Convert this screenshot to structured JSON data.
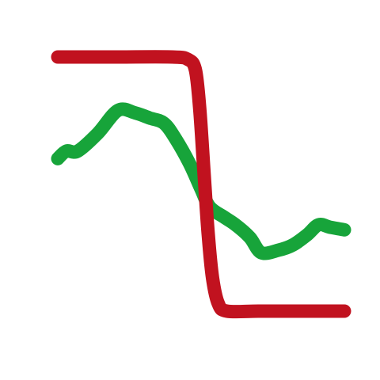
{
  "chart_data": {
    "type": "line",
    "title": "",
    "xlabel": "",
    "ylabel": "",
    "xlim": [
      0,
      10
    ],
    "ylim": [
      0,
      10
    ],
    "grid": false,
    "legend": "none",
    "series": [
      {
        "color": "#17a43a",
        "x": [
          0.0,
          0.3,
          0.7,
          1.4,
          2.1,
          2.7,
          3.2,
          3.7,
          4.1,
          4.6,
          5.0,
          5.3,
          5.8,
          6.2,
          6.7,
          7.1,
          7.7,
          8.2,
          8.7,
          9.1,
          9.5,
          10.0
        ],
        "y": [
          6.0,
          6.3,
          6.3,
          7.0,
          7.9,
          7.8,
          7.6,
          7.4,
          6.8,
          5.8,
          4.8,
          4.1,
          3.7,
          3.4,
          2.9,
          2.3,
          2.4,
          2.6,
          3.0,
          3.4,
          3.3,
          3.2
        ]
      },
      {
        "color": "#c1121f",
        "x": [
          0.0,
          2.0,
          4.0,
          4.55,
          4.8,
          4.95,
          5.1,
          5.25,
          5.4,
          5.6,
          5.9,
          7.0,
          8.5,
          10.0
        ],
        "y": [
          10.0,
          10.0,
          10.0,
          9.9,
          9.5,
          8.0,
          5.5,
          3.0,
          1.3,
          0.3,
          0.0,
          0.0,
          0.0,
          0.0
        ]
      }
    ]
  }
}
